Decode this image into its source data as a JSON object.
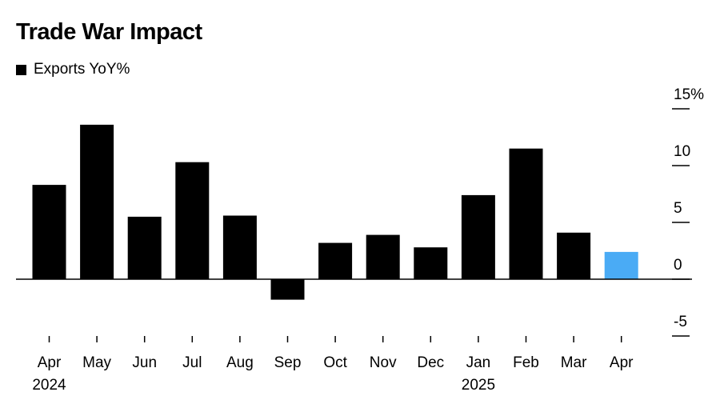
{
  "chart_data": {
    "type": "bar",
    "title": "Trade War Impact",
    "legend": [
      {
        "name": "Exports YoY%",
        "color": "#000000"
      }
    ],
    "categories": [
      "Apr",
      "May",
      "Jun",
      "Jul",
      "Aug",
      "Sep",
      "Oct",
      "Nov",
      "Dec",
      "Jan",
      "Feb",
      "Mar",
      "Apr"
    ],
    "year_labels": [
      {
        "index": 0,
        "label": "2024"
      },
      {
        "index": 9,
        "label": "2025"
      }
    ],
    "series": [
      {
        "name": "Exports YoY%",
        "values": [
          8.3,
          13.6,
          5.5,
          10.3,
          5.6,
          -1.8,
          3.2,
          3.9,
          2.8,
          7.4,
          11.5,
          4.1,
          2.4
        ]
      }
    ],
    "bar_colors": [
      "#000000",
      "#000000",
      "#000000",
      "#000000",
      "#000000",
      "#000000",
      "#000000",
      "#000000",
      "#000000",
      "#000000",
      "#000000",
      "#000000",
      "#4aabf5"
    ],
    "ylim": [
      -5,
      15
    ],
    "yticks": [
      "15%",
      "10",
      "5",
      "0",
      "-5"
    ],
    "ytick_values": [
      15,
      10,
      5,
      0,
      -5
    ],
    "y_axis_position": "right",
    "grid": false
  }
}
